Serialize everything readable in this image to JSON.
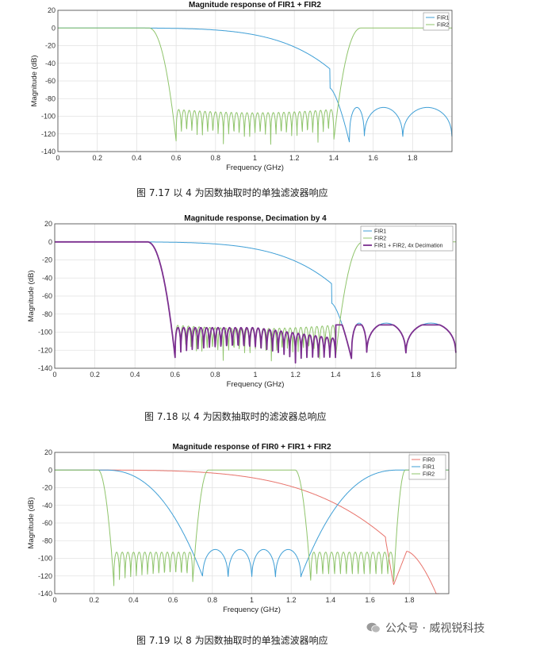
{
  "charts": [
    {
      "title": "Magnitude response of FIR1 + FIR2",
      "xlabel": "Frequency (GHz)",
      "ylabel": "Magnitude (dB)",
      "caption": "图  7.17  以 4 为因数抽取时的单独滤波器响应",
      "legend": [
        {
          "name": "FIR1",
          "color": "#3f9fd6"
        },
        {
          "name": "FIR2",
          "color": "#8fc46b"
        }
      ]
    },
    {
      "title": "Magnitude response, Decimation by 4",
      "xlabel": "Frequency (GHz)",
      "ylabel": "Magnitude (dB)",
      "caption": "图  7.18  以 4 为因数抽取时的滤波器总响应",
      "legend": [
        {
          "name": "FIR1",
          "color": "#3f9fd6"
        },
        {
          "name": "FIR2",
          "color": "#8fc46b"
        },
        {
          "name": "FIR1 + FIR2, 4x Decimation",
          "color": "#7b2f8f"
        }
      ]
    },
    {
      "title": "Magnitude response of FIR0 + FIR1 + FIR2",
      "xlabel": "Frequency (GHz)",
      "ylabel": "Magnitude (dB)",
      "caption": "图  7.19  以 8 为因数抽取时的单独滤波器响应",
      "legend": [
        {
          "name": "FIR0",
          "color": "#e8736b"
        },
        {
          "name": "FIR1",
          "color": "#3f9fd6"
        },
        {
          "name": "FIR2",
          "color": "#8fc46b"
        }
      ]
    }
  ],
  "watermark": "公众号 · 威视锐科技",
  "chart_data": [
    {
      "type": "line",
      "title": "Magnitude response of FIR1 + FIR2",
      "xlabel": "Frequency (GHz)",
      "ylabel": "Magnitude (dB)",
      "xlim": [
        0,
        2.0
      ],
      "ylim": [
        -140,
        20
      ],
      "xticks": [
        0,
        0.2,
        0.4,
        0.6,
        0.8,
        1,
        1.2,
        1.4,
        1.6,
        1.8
      ],
      "yticks": [
        20,
        0,
        -20,
        -40,
        -60,
        -80,
        -100,
        -120,
        -140
      ],
      "grid": true,
      "legend_position": "top-right",
      "series": [
        {
          "name": "FIR1",
          "x": [
            0,
            0.5,
            0.8,
            1.0,
            1.2,
            1.3,
            1.4,
            1.45,
            1.48,
            1.52,
            1.55,
            1.6,
            1.7,
            1.75,
            1.85,
            1.9,
            2.0
          ],
          "y": [
            0,
            0,
            -3,
            -8,
            -18,
            -28,
            -45,
            -70,
            -128,
            -90,
            -130,
            -92,
            -110,
            -130,
            -90,
            -95,
            -140
          ]
        },
        {
          "name": "FIR2",
          "x": [
            0,
            0.45,
            0.5,
            0.55,
            0.6,
            0.62,
            0.8,
            1.0,
            1.2,
            1.38,
            1.4,
            1.45,
            1.5,
            2.0
          ],
          "y": [
            0,
            0,
            -5,
            -40,
            -128,
            -95,
            -92,
            -90,
            -92,
            -95,
            -128,
            -40,
            0,
            0
          ]
        }
      ]
    },
    {
      "type": "line",
      "title": "Magnitude response, Decimation by 4",
      "xlabel": "Frequency (GHz)",
      "ylabel": "Magnitude (dB)",
      "xlim": [
        0,
        2.0
      ],
      "ylim": [
        -140,
        20
      ],
      "xticks": [
        0,
        0.2,
        0.4,
        0.6,
        0.8,
        1,
        1.2,
        1.4,
        1.6,
        1.8
      ],
      "yticks": [
        20,
        0,
        -20,
        -40,
        -60,
        -80,
        -100,
        -120,
        -140
      ],
      "grid": true,
      "legend_position": "top-right",
      "series": [
        {
          "name": "FIR1",
          "x": [
            0,
            0.5,
            0.8,
            1.0,
            1.2,
            1.3,
            1.4,
            1.45,
            1.48,
            1.55,
            1.7,
            1.85,
            2.0
          ],
          "y": [
            0,
            0,
            -3,
            -8,
            -18,
            -28,
            -45,
            -70,
            -128,
            -90,
            -110,
            -90,
            -140
          ]
        },
        {
          "name": "FIR2",
          "x": [
            0,
            0.45,
            0.5,
            0.55,
            0.6,
            0.62,
            0.8,
            1.0,
            1.2,
            1.38,
            1.4,
            1.45,
            1.5,
            2.0
          ],
          "y": [
            0,
            0,
            -5,
            -40,
            -128,
            -95,
            -92,
            -90,
            -92,
            -95,
            -128,
            -40,
            0,
            0
          ]
        },
        {
          "name": "FIR1 + FIR2, 4x Decimation",
          "x": [
            0,
            0.45,
            0.5,
            0.55,
            0.6,
            0.62,
            0.8,
            1.0,
            1.2,
            1.4,
            1.5,
            1.55,
            1.7,
            1.75,
            1.85,
            2.0
          ],
          "y": [
            0,
            0,
            -5,
            -40,
            -128,
            -95,
            -95,
            -93,
            -100,
            -110,
            -92,
            -130,
            -93,
            -130,
            -90,
            -140
          ]
        }
      ]
    },
    {
      "type": "line",
      "title": "Magnitude response of FIR0 + FIR1 + FIR2",
      "xlabel": "Frequency (GHz)",
      "ylabel": "Magnitude (dB)",
      "xlim": [
        0,
        2.0
      ],
      "ylim": [
        -140,
        20
      ],
      "xticks": [
        0,
        0.2,
        0.4,
        0.6,
        0.8,
        1,
        1.2,
        1.4,
        1.6,
        1.8
      ],
      "yticks": [
        20,
        0,
        -20,
        -40,
        -60,
        -80,
        -100,
        -120,
        -140
      ],
      "grid": true,
      "legend_position": "top-right",
      "series": [
        {
          "name": "FIR0",
          "x": [
            0,
            0.6,
            1.0,
            1.2,
            1.4,
            1.5,
            1.6,
            1.65,
            1.7,
            1.72,
            1.76,
            1.85,
            1.95
          ],
          "y": [
            0,
            0,
            -4,
            -10,
            -22,
            -32,
            -45,
            -60,
            -100,
            -128,
            -92,
            -105,
            -140
          ]
        },
        {
          "name": "FIR1",
          "x": [
            0,
            0.25,
            0.4,
            0.55,
            0.65,
            0.7,
            0.75,
            0.88,
            1.0,
            1.12,
            1.25,
            1.3,
            1.35,
            1.45,
            1.55,
            1.75,
            2.0
          ],
          "y": [
            0,
            0,
            -2,
            -15,
            -50,
            -70,
            -128,
            -92,
            -128,
            -92,
            -128,
            -70,
            -50,
            -15,
            -2,
            0,
            0
          ]
        },
        {
          "name": "FIR2",
          "x": [
            0,
            0.22,
            0.26,
            0.3,
            0.32,
            0.5,
            0.7,
            0.75,
            0.8,
            1.2,
            1.25,
            1.3,
            1.5,
            1.7,
            1.75,
            1.8,
            2.0
          ],
          "y": [
            0,
            0,
            -40,
            -128,
            -95,
            -95,
            -128,
            -40,
            0,
            0,
            -40,
            -128,
            -95,
            -128,
            -40,
            0,
            0
          ]
        }
      ]
    }
  ]
}
